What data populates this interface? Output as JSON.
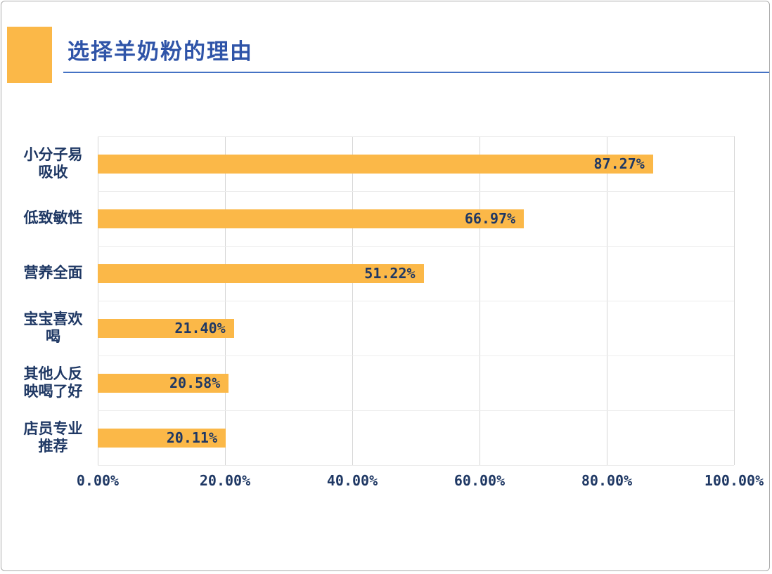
{
  "colors": {
    "bar": "#FBB848",
    "title": "#2F54A8",
    "underline": "#4472C4",
    "text": "#1F3864",
    "grid_v": "#D6D6D6",
    "grid_h": "#ECECEC",
    "frame_border": "#ABABAB",
    "background": "#FFFFFF"
  },
  "chart_data": {
    "type": "bar",
    "orientation": "horizontal",
    "title": "选择羊奶粉的理由",
    "categories": [
      "小分子易吸收",
      "低致敏性",
      "营养全面",
      "宝宝喜欢喝",
      "其他人反映喝了好",
      "店员专业推荐"
    ],
    "values": [
      87.27,
      66.97,
      51.22,
      21.4,
      20.58,
      20.11
    ],
    "value_labels": [
      "87.27%",
      "66.97%",
      "51.22%",
      "21.40%",
      "20.58%",
      "20.11%"
    ],
    "x_ticks": [
      {
        "label": "0.00%",
        "value": 0
      },
      {
        "label": "20.00%",
        "value": 20
      },
      {
        "label": "40.00%",
        "value": 40
      },
      {
        "label": "60.00%",
        "value": 60
      },
      {
        "label": "80.00%",
        "value": 80
      },
      {
        "label": "100.00%",
        "value": 100
      }
    ],
    "xlim": [
      0,
      100
    ],
    "grid": "vertical",
    "legend": "none",
    "value_label_position": "inside-end"
  }
}
